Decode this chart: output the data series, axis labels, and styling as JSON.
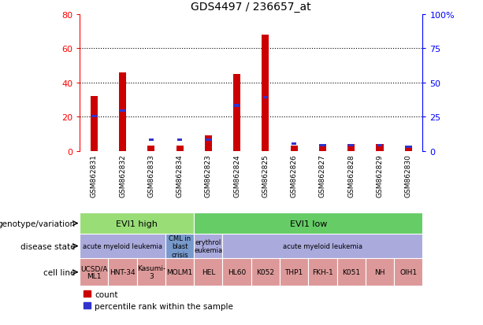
{
  "title": "GDS4497 / 236657_at",
  "samples": [
    "GSM862831",
    "GSM862832",
    "GSM862833",
    "GSM862834",
    "GSM862823",
    "GSM862824",
    "GSM862825",
    "GSM862826",
    "GSM862827",
    "GSM862828",
    "GSM862829",
    "GSM862830"
  ],
  "count_values": [
    32,
    46,
    3,
    3,
    9,
    45,
    68,
    3,
    4,
    4,
    4,
    3
  ],
  "percentile_values": [
    26,
    30,
    9,
    9,
    9,
    34,
    40,
    6,
    5,
    5,
    5,
    4
  ],
  "ylim_left": [
    0,
    80
  ],
  "ylim_right": [
    0,
    100
  ],
  "yticks_left": [
    0,
    20,
    40,
    60,
    80
  ],
  "ytick_labels_left": [
    "0",
    "20",
    "40",
    "60",
    "80"
  ],
  "yticks_right": [
    0,
    25,
    50,
    75,
    100
  ],
  "ytick_labels_right": [
    "0",
    "25",
    "50",
    "75",
    "100%"
  ],
  "bar_color_red": "#cc0000",
  "bar_color_blue": "#3333cc",
  "background_color": "#ffffff",
  "genotype_groups": [
    {
      "label": "EVI1 high",
      "start": 0,
      "end": 4,
      "color": "#99dd77"
    },
    {
      "label": "EVI1 low",
      "start": 4,
      "end": 12,
      "color": "#66cc66"
    }
  ],
  "disease_groups": [
    {
      "label": "acute myeloid leukemia",
      "start": 0,
      "end": 3,
      "color": "#aaaadd"
    },
    {
      "label": "CML in\nblast\ncrisis",
      "start": 3,
      "end": 4,
      "color": "#7799cc"
    },
    {
      "label": "erythrol\neukemia",
      "start": 4,
      "end": 5,
      "color": "#aaaadd"
    },
    {
      "label": "acute myeloid leukemia",
      "start": 5,
      "end": 12,
      "color": "#aaaadd"
    }
  ],
  "cell_lines": [
    {
      "label": "UCSD/A\nML1",
      "start": 0,
      "end": 1,
      "color": "#dd9999"
    },
    {
      "label": "HNT-34",
      "start": 1,
      "end": 2,
      "color": "#dd9999"
    },
    {
      "label": "Kasumi-\n3",
      "start": 2,
      "end": 3,
      "color": "#dd9999"
    },
    {
      "label": "MOLM1",
      "start": 3,
      "end": 4,
      "color": "#dd9999"
    },
    {
      "label": "HEL",
      "start": 4,
      "end": 5,
      "color": "#dd9999"
    },
    {
      "label": "HL60",
      "start": 5,
      "end": 6,
      "color": "#dd9999"
    },
    {
      "label": "K052",
      "start": 6,
      "end": 7,
      "color": "#dd9999"
    },
    {
      "label": "THP1",
      "start": 7,
      "end": 8,
      "color": "#dd9999"
    },
    {
      "label": "FKH-1",
      "start": 8,
      "end": 9,
      "color": "#dd9999"
    },
    {
      "label": "K051",
      "start": 9,
      "end": 10,
      "color": "#dd9999"
    },
    {
      "label": "NH",
      "start": 10,
      "end": 11,
      "color": "#dd9999"
    },
    {
      "label": "OIH1",
      "start": 11,
      "end": 12,
      "color": "#dd9999"
    }
  ],
  "legend_red_label": "count",
  "legend_blue_label": "percentile rank within the sample",
  "bar_width": 0.25,
  "blue_square_size": 0.18
}
